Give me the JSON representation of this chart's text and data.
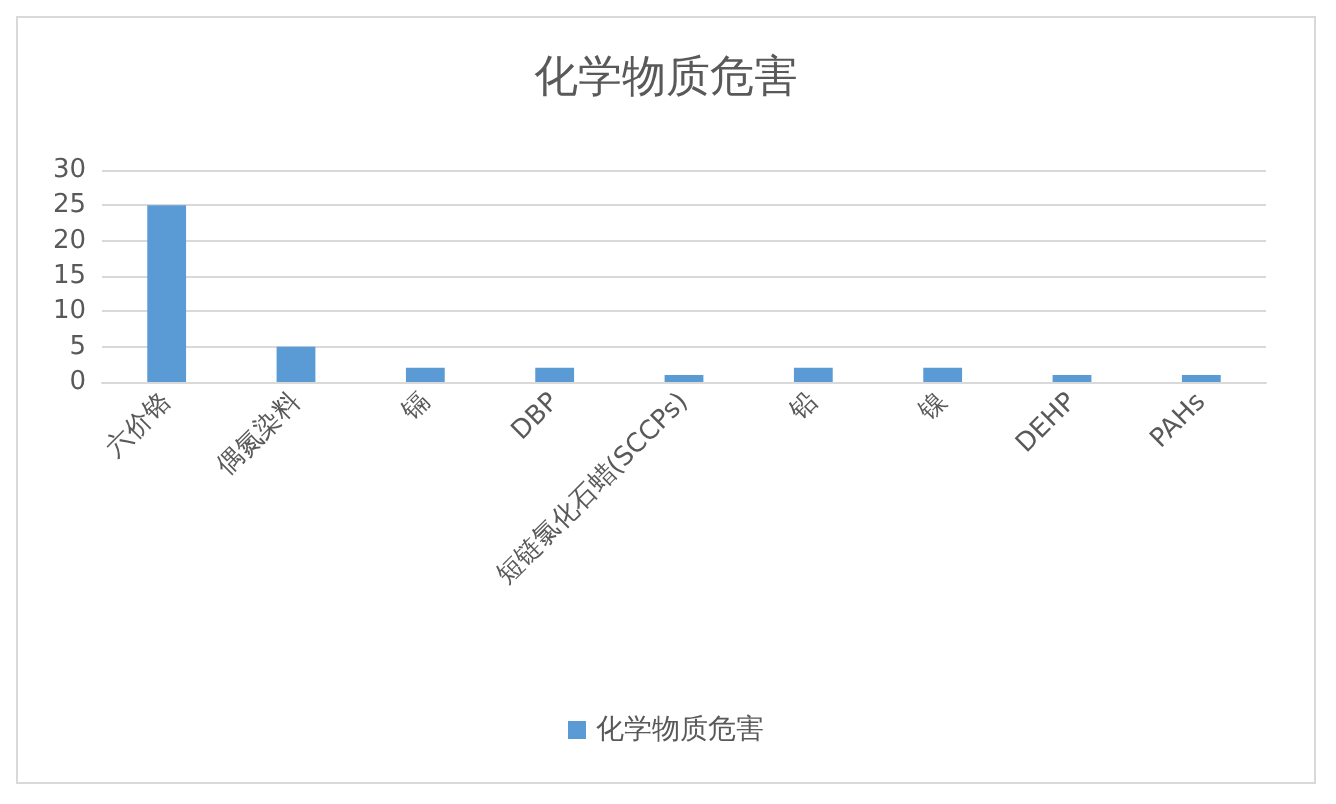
{
  "chart_data": {
    "type": "bar",
    "title": "化学物质危害",
    "categories": [
      "六价铬",
      "偶氮染料",
      "镉",
      "DBP",
      "短链氯化石蜡(SCCPs)",
      "铅",
      "镍",
      "DEHP",
      "PAHs"
    ],
    "series": [
      {
        "name": "化学物质危害",
        "color": "#5b9bd5",
        "values": [
          25,
          5,
          2,
          2,
          1,
          2,
          2,
          1,
          1
        ]
      }
    ],
    "ylim": [
      0,
      30
    ],
    "yticks": [
      0,
      5,
      10,
      15,
      20,
      25,
      30
    ],
    "grid": "y",
    "legend": "bottom"
  }
}
